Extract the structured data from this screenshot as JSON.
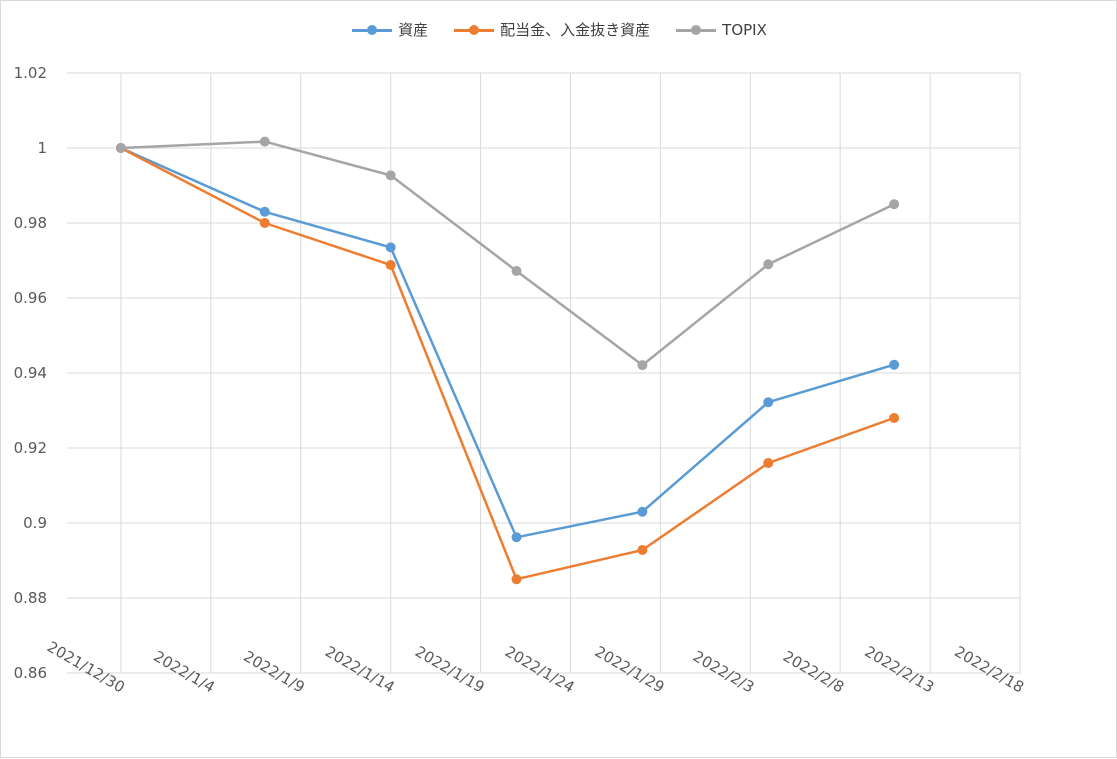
{
  "chart_data": {
    "type": "line",
    "title": "",
    "xlabel": "",
    "ylabel": "",
    "x_ticks": [
      "2021/12/30",
      "2022/1/4",
      "2022/1/9",
      "2022/1/14",
      "2022/1/19",
      "2022/1/24",
      "2022/1/29",
      "2022/2/3",
      "2022/2/8",
      "2022/2/13",
      "2022/2/18"
    ],
    "x": [
      "2021/12/30",
      "2022/1/7",
      "2022/1/14",
      "2022/1/21",
      "2022/1/28",
      "2022/2/4",
      "2022/2/11"
    ],
    "xlim": [
      "2021/12/27",
      "2022/2/18"
    ],
    "ylim": [
      0.86,
      1.02
    ],
    "y_ticks": [
      "0.86",
      "0.88",
      "0.9",
      "0.92",
      "0.94",
      "0.96",
      "0.98",
      "1",
      "1.02"
    ],
    "grid": true,
    "legend_position": "top-center",
    "series": [
      {
        "name": "資産",
        "color": "#5b9bd5",
        "values": [
          1.0,
          0.983,
          0.9735,
          0.8962,
          0.903,
          0.9322,
          0.9422
        ]
      },
      {
        "name": "配当金、入金抜き資産",
        "color": "#ed7d31",
        "values": [
          1.0,
          0.98,
          0.9688,
          0.885,
          0.8928,
          0.916,
          0.928
        ]
      },
      {
        "name": "TOPIX",
        "color": "#a5a5a5",
        "values": [
          1.0,
          1.0017,
          0.9927,
          0.9672,
          0.9421,
          0.969,
          0.985
        ]
      }
    ]
  }
}
